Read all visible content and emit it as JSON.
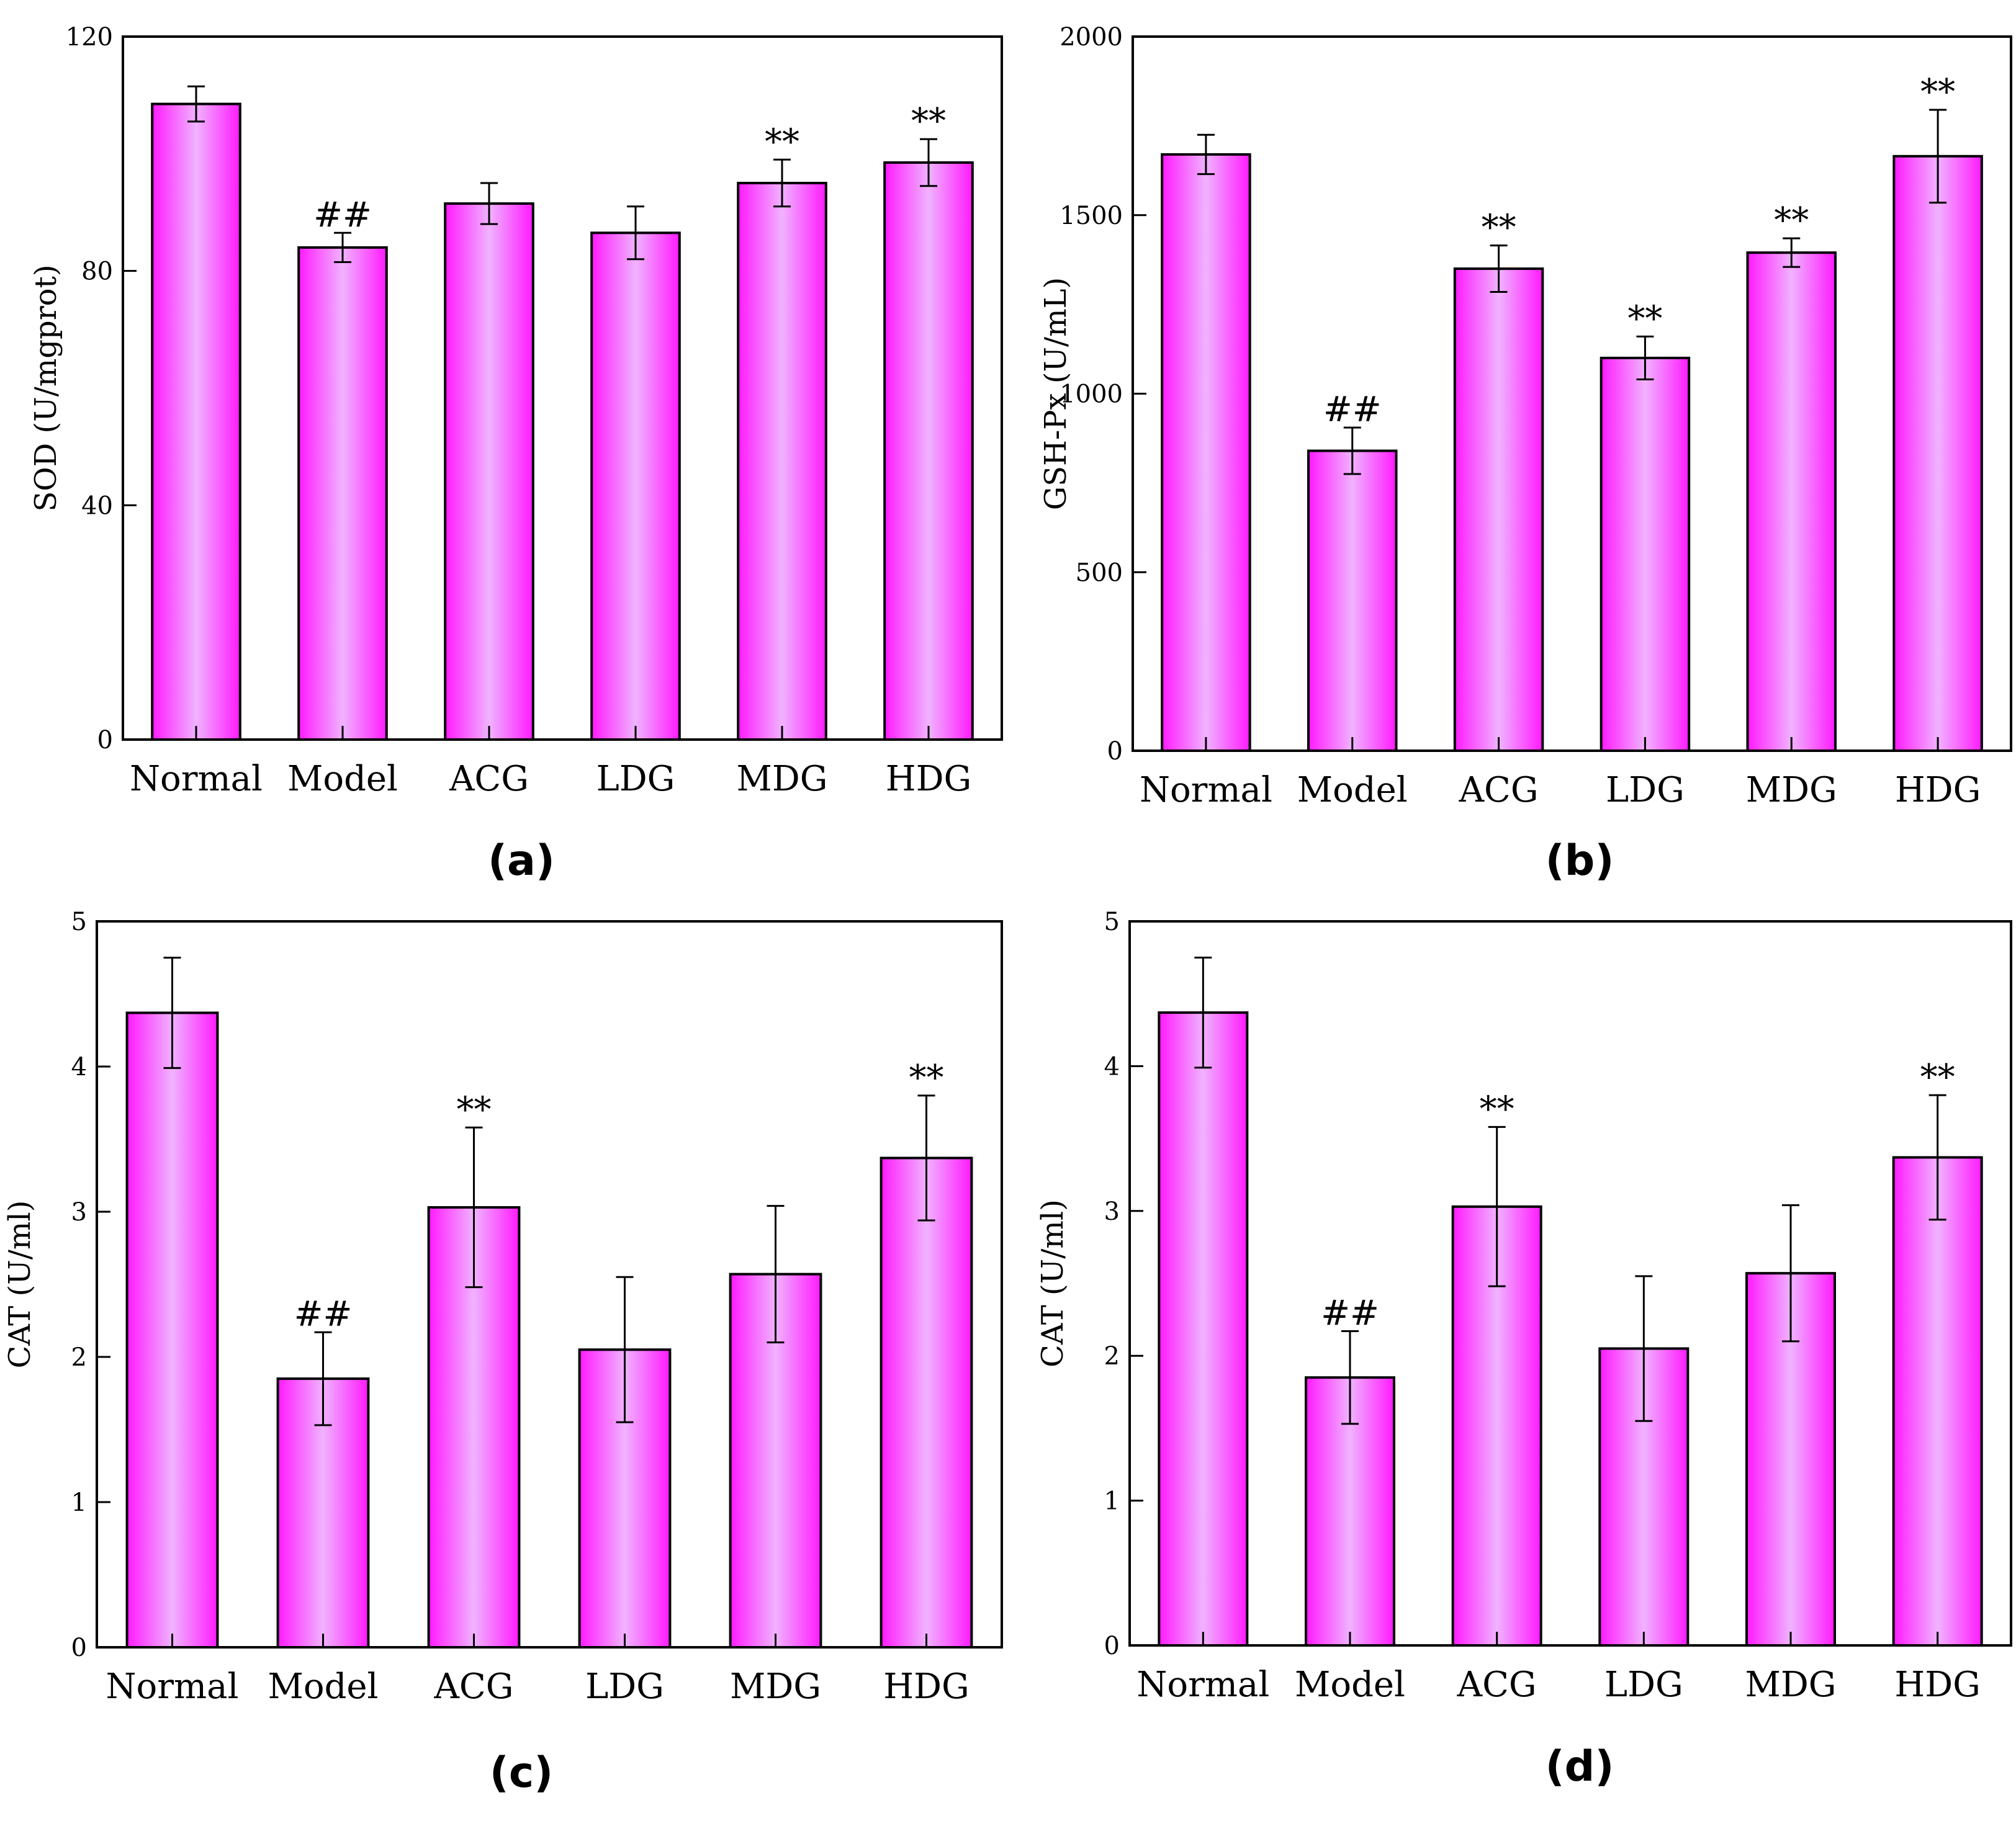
{
  "colors": {
    "bar_edge": "#ff1aff",
    "bar_center": "#f0b3ff",
    "frame": "#000000"
  },
  "chart_data": [
    {
      "panel": "(a)",
      "type": "bar",
      "categories": [
        "Normal",
        "Model",
        "ACG",
        "LDG",
        "MDG",
        "HDG"
      ],
      "values": [
        108.5,
        84,
        91.5,
        86.5,
        95,
        98.5
      ],
      "errors": [
        3,
        2.5,
        3.5,
        4.5,
        4,
        4
      ],
      "annotations": [
        "",
        "##",
        "",
        "",
        "**",
        "**"
      ],
      "ylabel": "SOD (U/mgprot)",
      "ylim": [
        0,
        120
      ],
      "yticks": [
        0,
        40,
        80,
        120
      ],
      "grid": false
    },
    {
      "panel": "(b)",
      "type": "bar",
      "categories": [
        "Normal",
        "Model",
        "ACG",
        "LDG",
        "MDG",
        "HDG"
      ],
      "values": [
        1670,
        840,
        1350,
        1100,
        1395,
        1665
      ],
      "errors": [
        55,
        65,
        65,
        60,
        40,
        130
      ],
      "annotations": [
        "",
        "##",
        "**",
        "**",
        "**",
        "**"
      ],
      "ylabel": "GSH-Px (U/mL)",
      "ylim": [
        0,
        2000
      ],
      "yticks": [
        0,
        500,
        1000,
        1500,
        2000
      ],
      "grid": false
    },
    {
      "panel": "(c)",
      "type": "bar",
      "categories": [
        "Normal",
        "Model",
        "ACG",
        "LDG",
        "MDG",
        "HDG"
      ],
      "values": [
        4.37,
        1.85,
        3.03,
        2.05,
        2.57,
        3.37
      ],
      "errors": [
        0.38,
        0.32,
        0.55,
        0.5,
        0.47,
        0.43
      ],
      "annotations": [
        "",
        "##",
        "**",
        "",
        "",
        "**"
      ],
      "ylabel": "CAT (U/ml)",
      "ylim": [
        0,
        5
      ],
      "yticks": [
        0,
        1,
        2,
        3,
        4,
        5
      ],
      "grid": false
    },
    {
      "panel": "(d)",
      "type": "bar",
      "categories": [
        "Normal",
        "Model",
        "ACG",
        "LDG",
        "MDG",
        "HDG"
      ],
      "values": [
        4.37,
        1.85,
        3.03,
        2.05,
        2.57,
        3.37
      ],
      "errors": [
        0.38,
        0.32,
        0.55,
        0.5,
        0.47,
        0.43
      ],
      "annotations": [
        "",
        "##",
        "**",
        "",
        "",
        "**"
      ],
      "ylabel": "CAT (U/ml)",
      "ylim": [
        0,
        5
      ],
      "yticks": [
        0,
        1,
        2,
        3,
        4,
        5
      ],
      "grid": false
    }
  ]
}
